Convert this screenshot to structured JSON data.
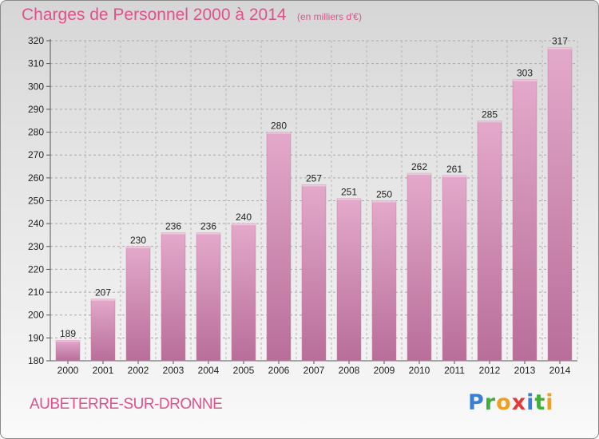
{
  "chart_data": {
    "type": "bar",
    "title": "Charges de Personnel 2000 à 2014",
    "subtitle": "(en milliers d'€)",
    "categories": [
      "2000",
      "2001",
      "2002",
      "2003",
      "2004",
      "2005",
      "2006",
      "2007",
      "2008",
      "2009",
      "2010",
      "2011",
      "2012",
      "2013",
      "2014"
    ],
    "values": [
      189,
      207,
      230,
      236,
      236,
      240,
      280,
      257,
      251,
      250,
      262,
      261,
      285,
      303,
      317
    ],
    "ylim": [
      180,
      320
    ],
    "yticks": [
      180,
      190,
      200,
      210,
      220,
      230,
      240,
      250,
      260,
      270,
      280,
      290,
      300,
      310,
      320
    ],
    "grid": true,
    "bar_color": "#d98fb5"
  },
  "footer": {
    "commune": "AUBETERRE-SUR-DRONNE",
    "logo_letters": [
      {
        "char": "P",
        "color": "#3a7fd6"
      },
      {
        "char": "r",
        "color": "#3fae3a"
      },
      {
        "char": "o",
        "color": "#f0a020"
      },
      {
        "char": "x",
        "color": "#e03a3a"
      },
      {
        "char": "i",
        "color": "#3a7fd6"
      },
      {
        "char": "t",
        "color": "#3fae3a"
      },
      {
        "char": "i",
        "color": "#f0a020"
      }
    ]
  }
}
